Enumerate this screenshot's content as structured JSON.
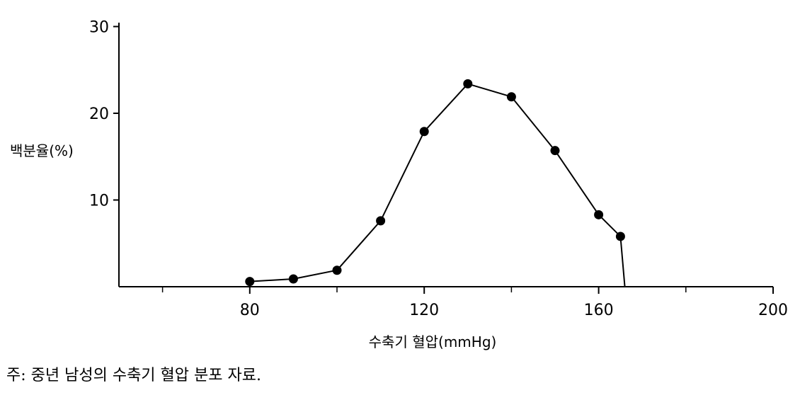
{
  "chart_data": {
    "type": "line",
    "title": "",
    "xlabel": "수축기 혈압(mmHg)",
    "ylabel": "백분율(%)",
    "xlim": [
      50,
      200
    ],
    "ylim": [
      0,
      30
    ],
    "x_ticks": [
      80,
      120,
      160,
      200
    ],
    "x_minor_ticks": [
      60,
      100,
      140,
      180
    ],
    "y_ticks": [
      10,
      20,
      30
    ],
    "grid": false,
    "legend": "none",
    "series": [
      {
        "x": [
          80,
          90,
          100,
          110,
          120,
          130,
          140,
          150,
          160,
          165
        ],
        "y": [
          0.6,
          0.9,
          1.9,
          7.6,
          17.9,
          23.4,
          21.9,
          15.7,
          8.3,
          5.8
        ]
      }
    ],
    "drop_line_to_axis_at_x": 166,
    "marker": "filled-circle",
    "color": "#000000"
  },
  "note": "주: 중년 남성의 수축기 혈압 분포 자료."
}
